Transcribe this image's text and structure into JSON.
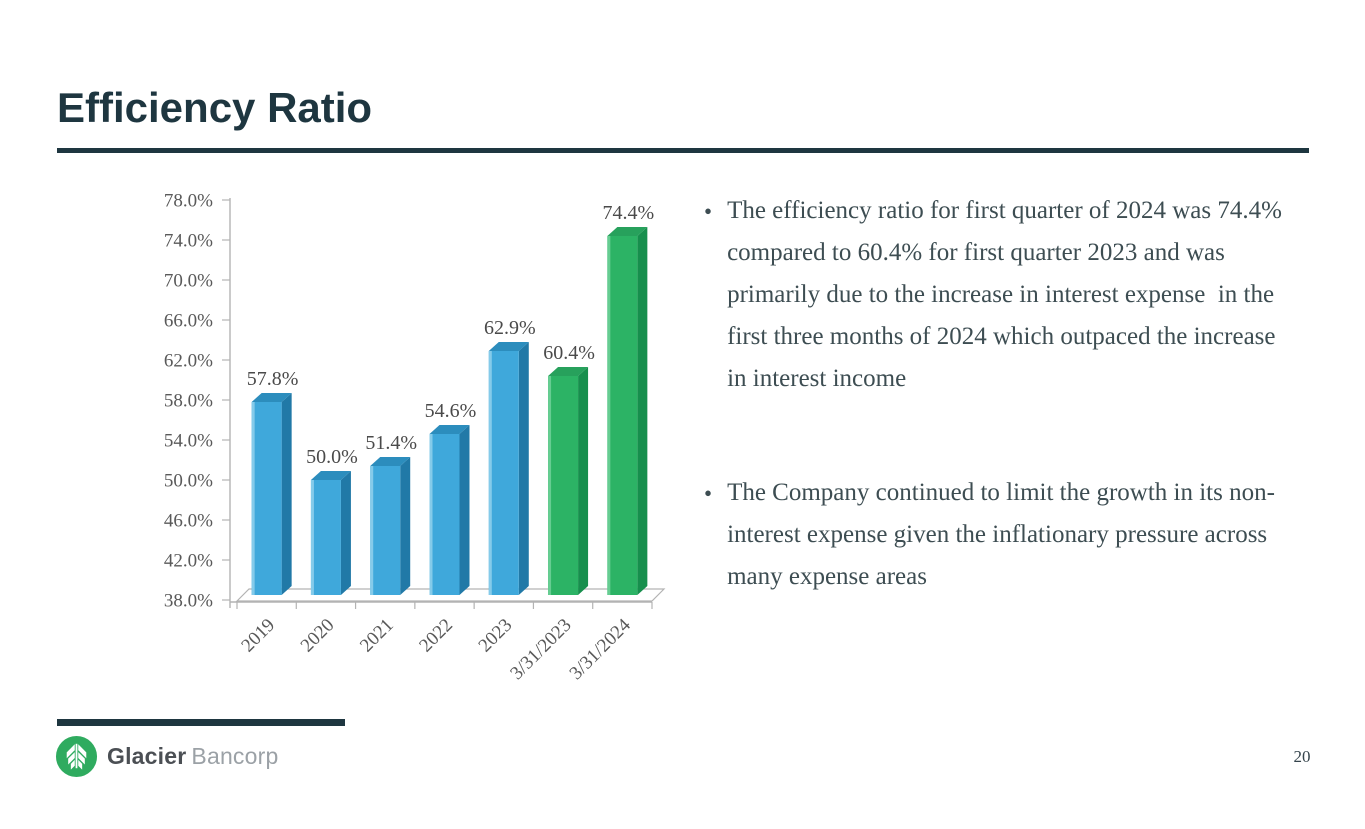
{
  "slide": {
    "title": "Efficiency Ratio",
    "page_number": "20"
  },
  "chart_data": {
    "type": "bar",
    "style": "3d-column",
    "title": "",
    "xlabel": "",
    "ylabel": "",
    "categories": [
      "2019",
      "2020",
      "2021",
      "2022",
      "2023",
      "3/31/2023",
      "3/31/2024"
    ],
    "values": [
      57.8,
      50.0,
      51.4,
      54.6,
      62.9,
      60.4,
      74.4
    ],
    "value_labels": [
      "57.8%",
      "50.0%",
      "51.4%",
      "54.6%",
      "62.9%",
      "60.4%",
      "74.4%"
    ],
    "bar_color_keys": [
      "blue",
      "blue",
      "blue",
      "blue",
      "blue",
      "green",
      "green"
    ],
    "ylim": [
      38.0,
      78.0
    ],
    "ytick_step": 4.0,
    "ytick_labels": [
      "38.0%",
      "42.0%",
      "46.0%",
      "50.0%",
      "54.0%",
      "58.0%",
      "62.0%",
      "66.0%",
      "70.0%",
      "74.0%",
      "78.0%"
    ],
    "grid": false,
    "legend": "none",
    "colors": {
      "blue": {
        "face": "#3FA8DB",
        "side": "#2179A7",
        "top": "#2C8DBD",
        "edge": "#85CBEA"
      },
      "green": {
        "face": "#2CB365",
        "side": "#178F4D",
        "top": "#27A15C",
        "edge": "#66CD92"
      }
    },
    "axis_color": "#b3b3b3",
    "tick_label_color": "#595959",
    "data_label_color": "#4a4a4a"
  },
  "bullets": [
    "The efficiency ratio for first quarter of 2024 was 74.4% compared to 60.4% for first quarter 2023 and was primarily due to the increase in interest expense  in the first three months of 2024 which outpaced the increase in interest income",
    "The Company continued to limit the growth in its non-interest expense given the inflationary pressure across many expense areas"
  ],
  "footer": {
    "brand_primary": "Glacier",
    "brand_secondary": "Bancorp",
    "logo_color": "#2FAB5F"
  },
  "theme": {
    "accent_dark": "#1e3640",
    "body_text": "#3d4d52"
  }
}
